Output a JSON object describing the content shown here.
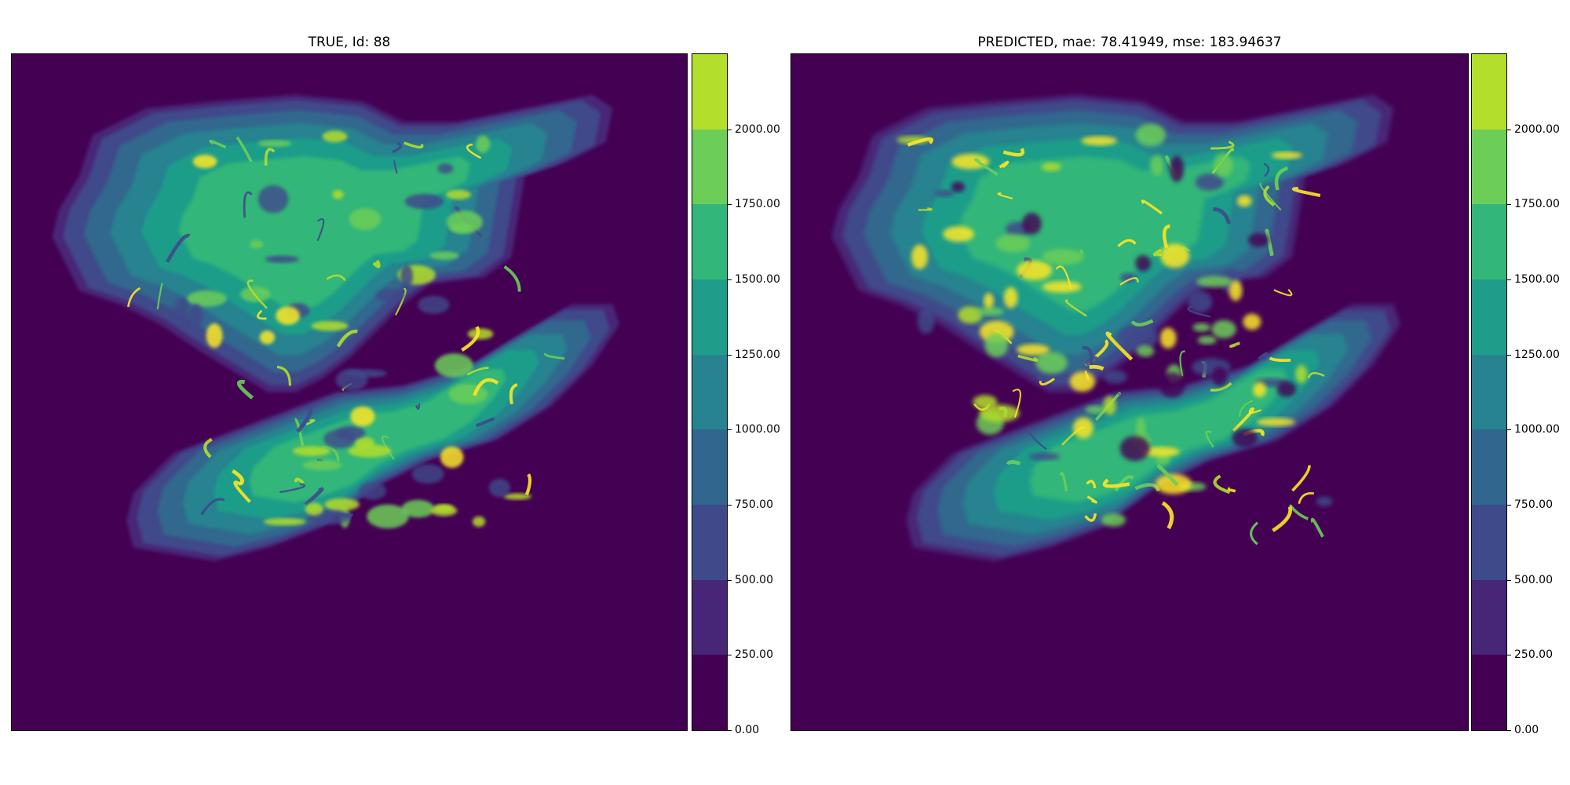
{
  "chart_data": [
    {
      "type": "heatmap",
      "title": "TRUE, Id: 88",
      "colorbar": {
        "levels": [
          0,
          250,
          500,
          750,
          1000,
          1250,
          1500,
          1750,
          2000,
          2250
        ],
        "tick_values": [
          0,
          250,
          500,
          750,
          1000,
          1250,
          1500,
          1750,
          2000
        ],
        "tick_labels": [
          "0.00",
          "250.00",
          "500.00",
          "750.00",
          "1000.00",
          "1250.00",
          "1500.00",
          "1750.00",
          "2000.00"
        ],
        "colors": [
          "#440154",
          "#482677",
          "#3f4a8a",
          "#31678e",
          "#26838f",
          "#1f9d8a",
          "#33b679",
          "#6cce59",
          "#b4de2c",
          "#fde725"
        ]
      },
      "grid": false
    },
    {
      "type": "heatmap",
      "title": "PREDICTED, mae: 78.41949, mse: 183.94637",
      "colorbar": {
        "levels": [
          0,
          250,
          500,
          750,
          1000,
          1250,
          1500,
          1750,
          2000,
          2250
        ],
        "tick_values": [
          0,
          250,
          500,
          750,
          1000,
          1250,
          1500,
          1750,
          2000
        ],
        "tick_labels": [
          "0.00",
          "250.00",
          "500.00",
          "750.00",
          "1000.00",
          "1250.00",
          "1500.00",
          "1750.00",
          "2000.00"
        ],
        "colors": [
          "#440154",
          "#482677",
          "#3f4a8a",
          "#31678e",
          "#26838f",
          "#1f9d8a",
          "#33b679",
          "#6cce59",
          "#b4de2c",
          "#fde725"
        ]
      },
      "grid": false
    }
  ]
}
